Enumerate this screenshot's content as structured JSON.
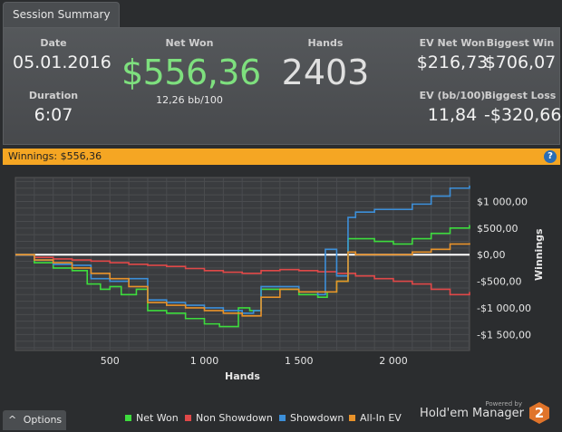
{
  "tab": {
    "label": "Session Summary"
  },
  "summary": {
    "date": {
      "label": "Date",
      "value": "05.01.2016"
    },
    "duration": {
      "label": "Duration",
      "value": "6:07"
    },
    "net_won": {
      "label": "Net Won",
      "value": "$556,36",
      "sub": "12,26 bb/100"
    },
    "hands": {
      "label": "Hands",
      "value": "2403"
    },
    "ev_net_won": {
      "label": "EV Net Won",
      "value": "$216,73"
    },
    "ev_bb": {
      "label": "EV (bb/100)",
      "value": "11,84"
    },
    "biggest_win": {
      "label": "Biggest Win",
      "value": "$706,07"
    },
    "biggest_loss": {
      "label": "Biggest Loss",
      "value": "-$320,66"
    }
  },
  "winbar": {
    "label": "Winnings: $556,36",
    "help": "?"
  },
  "chart_data": {
    "type": "line",
    "xlabel": "Hands",
    "ylabel": "Winnings",
    "xlim": [
      0,
      2403
    ],
    "ylim": [
      -1800,
      1450
    ],
    "x_ticks": [
      500,
      1000,
      1500,
      2000
    ],
    "x_tick_labels": [
      "500",
      "1 000",
      "1 500",
      "2 000"
    ],
    "y_ticks": [
      1000,
      500,
      0,
      -500,
      -1000,
      -1500
    ],
    "y_tick_labels": [
      "$1 000,00",
      "$500,00",
      "$0,00",
      "-$500,00",
      "-$1 000,00",
      "-$1 500,00"
    ],
    "series": [
      {
        "name": "Net Won",
        "color": "#3ddc3d",
        "x": [
          0,
          100,
          200,
          300,
          380,
          450,
          500,
          560,
          640,
          700,
          800,
          900,
          1000,
          1080,
          1180,
          1240,
          1300,
          1400,
          1500,
          1600,
          1650,
          1700,
          1760,
          1800,
          1900,
          2000,
          2100,
          2200,
          2300,
          2403
        ],
        "y": [
          0,
          -150,
          -250,
          -300,
          -550,
          -650,
          -600,
          -750,
          -650,
          -1050,
          -1100,
          -1200,
          -1300,
          -1350,
          -1000,
          -1050,
          -650,
          -650,
          -750,
          -800,
          -700,
          -500,
          300,
          300,
          250,
          200,
          300,
          400,
          500,
          556
        ]
      },
      {
        "name": "Non Showdown",
        "color": "#e04848",
        "x": [
          0,
          100,
          200,
          300,
          400,
          500,
          600,
          700,
          800,
          900,
          1000,
          1100,
          1200,
          1300,
          1400,
          1500,
          1600,
          1700,
          1800,
          1900,
          2000,
          2100,
          2200,
          2300,
          2403
        ],
        "y": [
          0,
          -50,
          -80,
          -100,
          -120,
          -150,
          -180,
          -200,
          -220,
          -260,
          -300,
          -330,
          -350,
          -300,
          -280,
          -300,
          -320,
          -350,
          -400,
          -450,
          -500,
          -550,
          -650,
          -750,
          -700
        ]
      },
      {
        "name": "Showdown",
        "color": "#3c8fd9",
        "x": [
          0,
          100,
          200,
          300,
          400,
          500,
          600,
          700,
          800,
          900,
          1000,
          1100,
          1200,
          1260,
          1300,
          1400,
          1500,
          1600,
          1640,
          1700,
          1760,
          1800,
          1900,
          2000,
          2100,
          2200,
          2300,
          2403
        ],
        "y": [
          0,
          -100,
          -180,
          -200,
          -450,
          -500,
          -450,
          -850,
          -900,
          -950,
          -1000,
          -1050,
          -1100,
          -1050,
          -600,
          -600,
          -700,
          -750,
          100,
          -400,
          700,
          800,
          850,
          850,
          950,
          1100,
          1250,
          1300
        ]
      },
      {
        "name": "All-In EV",
        "color": "#e8922a",
        "x": [
          0,
          100,
          200,
          300,
          400,
          500,
          600,
          700,
          800,
          900,
          1000,
          1100,
          1200,
          1300,
          1400,
          1500,
          1600,
          1700,
          1760,
          1800,
          1900,
          2000,
          2100,
          2200,
          2300,
          2403
        ],
        "y": [
          0,
          -100,
          -150,
          -250,
          -350,
          -450,
          -600,
          -900,
          -950,
          -1000,
          -1050,
          -1100,
          -1150,
          -800,
          -650,
          -700,
          -700,
          -500,
          50,
          0,
          0,
          0,
          50,
          100,
          200,
          216
        ]
      }
    ],
    "legend_position": "bottom"
  },
  "bottom": {
    "options_label": "Options",
    "options_arrow": "^",
    "legend": [
      {
        "name": "Net Won",
        "color": "#3ddc3d"
      },
      {
        "name": "Non Showdown",
        "color": "#e04848"
      },
      {
        "name": "Showdown",
        "color": "#3c8fd9"
      },
      {
        "name": "All-In EV",
        "color": "#e8922a"
      }
    ],
    "powered_by": "Powered by",
    "brand_name": "Hold'em Manager",
    "brand_badge": "2"
  }
}
